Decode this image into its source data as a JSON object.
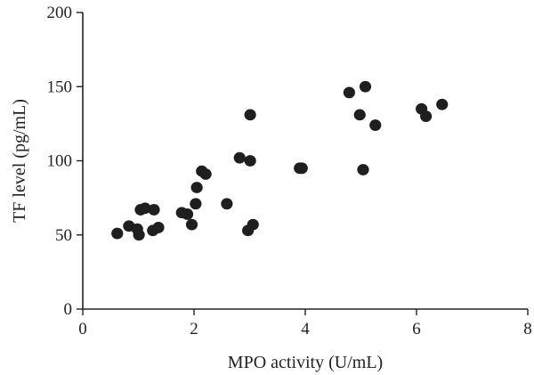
{
  "chart_data": {
    "type": "scatter",
    "title": "",
    "xlabel": "MPO activity (U/mL)",
    "ylabel": "TF level (pg/mL)",
    "xlim": [
      0,
      8
    ],
    "ylim": [
      0,
      200
    ],
    "xticks": [
      "0",
      "2",
      "4",
      "6",
      "8"
    ],
    "yticks": [
      "0",
      "50",
      "100",
      "150",
      "200"
    ],
    "grid": false,
    "legend": "none",
    "marker_color": "#1f1f1f",
    "points": [
      {
        "x": 0.62,
        "y": 51
      },
      {
        "x": 0.83,
        "y": 56
      },
      {
        "x": 0.98,
        "y": 54
      },
      {
        "x": 1.01,
        "y": 50
      },
      {
        "x": 1.04,
        "y": 67
      },
      {
        "x": 1.12,
        "y": 68
      },
      {
        "x": 1.26,
        "y": 53
      },
      {
        "x": 1.28,
        "y": 67
      },
      {
        "x": 1.36,
        "y": 55
      },
      {
        "x": 1.78,
        "y": 65
      },
      {
        "x": 1.88,
        "y": 64
      },
      {
        "x": 1.96,
        "y": 57
      },
      {
        "x": 2.03,
        "y": 71
      },
      {
        "x": 2.05,
        "y": 82
      },
      {
        "x": 2.14,
        "y": 93
      },
      {
        "x": 2.21,
        "y": 91
      },
      {
        "x": 2.59,
        "y": 71
      },
      {
        "x": 2.82,
        "y": 102
      },
      {
        "x": 2.97,
        "y": 53
      },
      {
        "x": 3.01,
        "y": 100
      },
      {
        "x": 3.01,
        "y": 131
      },
      {
        "x": 3.06,
        "y": 57
      },
      {
        "x": 3.9,
        "y": 95
      },
      {
        "x": 3.94,
        "y": 95
      },
      {
        "x": 4.79,
        "y": 146
      },
      {
        "x": 4.98,
        "y": 131
      },
      {
        "x": 5.04,
        "y": 94
      },
      {
        "x": 5.08,
        "y": 150
      },
      {
        "x": 5.26,
        "y": 124
      },
      {
        "x": 6.09,
        "y": 135
      },
      {
        "x": 6.17,
        "y": 130
      },
      {
        "x": 6.46,
        "y": 138
      }
    ]
  }
}
